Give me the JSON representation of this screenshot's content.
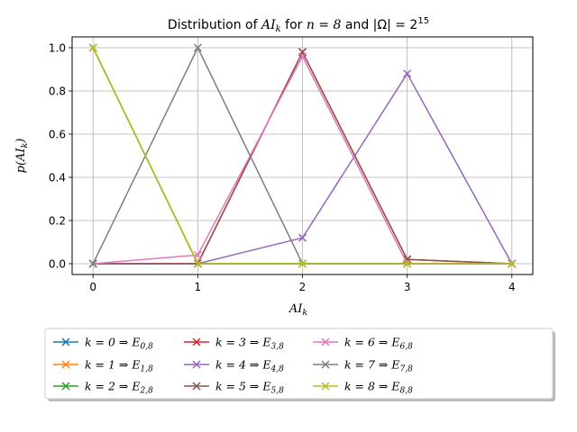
{
  "chart_data": {
    "type": "line",
    "title": "Distribution of AI_k for n = 8 and |Ω| = 2^15",
    "title_parts": {
      "prefix": "Distribution of ",
      "var": "AI",
      "var_sub": "k",
      "mid": " for ",
      "n_expr": "n = 8",
      "and": " and ",
      "omega_expr": "|Ω| = 2",
      "omega_sup": "15"
    },
    "xlabel": "AI_k",
    "xlabel_parts": {
      "main": "AI",
      "sub": "k"
    },
    "ylabel": "p(AI_k)",
    "ylabel_parts": {
      "pre": "p(AI",
      "sub": "k",
      "post": ")"
    },
    "x_ticks": [
      0,
      1,
      2,
      3,
      4
    ],
    "x_tick_labels": [
      "0",
      "1",
      "2",
      "3",
      "4"
    ],
    "y_ticks": [
      0.0,
      0.2,
      0.4,
      0.6,
      0.8,
      1.0
    ],
    "y_tick_labels": [
      "0.0",
      "0.2",
      "0.4",
      "0.6",
      "0.8",
      "1.0"
    ],
    "xlim": [
      -0.2,
      4.2
    ],
    "ylim": [
      -0.05,
      1.05
    ],
    "grid": true,
    "marker": "x",
    "legend_placement": "below-plot",
    "legend_columns": 4,
    "x": [
      0,
      1,
      2,
      3,
      4
    ],
    "series": [
      {
        "name": "k = 0 ⇒ E_{0,8}",
        "label": {
          "k": "k = 0 ⇒ ",
          "e": "E",
          "sub": "0,8"
        },
        "color": "#1f77b4",
        "values": [
          1.0,
          0.0,
          0.0,
          0.0,
          0.0
        ]
      },
      {
        "name": "k = 1 ⇒ E_{1,8}",
        "label": {
          "k": "k = 1 ⇒ ",
          "e": "E",
          "sub": "1,8"
        },
        "color": "#ff7f0e",
        "values": [
          1.0,
          0.0,
          0.0,
          0.0,
          0.0
        ]
      },
      {
        "name": "k = 2 ⇒ E_{2,8}",
        "label": {
          "k": "k = 2 ⇒ ",
          "e": "E",
          "sub": "2,8"
        },
        "color": "#2ca02c",
        "values": [
          1.0,
          0.0,
          0.0,
          0.0,
          0.0
        ]
      },
      {
        "name": "k = 3 ⇒ E_{3,8}",
        "label": {
          "k": "k = 3 ⇒ ",
          "e": "E",
          "sub": "3,8"
        },
        "color": "#d62728",
        "values": [
          0.0,
          0.0,
          0.98,
          0.02,
          0.0
        ]
      },
      {
        "name": "k = 4 ⇒ E_{4,8}",
        "label": {
          "k": "k = 4 ⇒ ",
          "e": "E",
          "sub": "4,8"
        },
        "color": "#9467bd",
        "values": [
          0.0,
          0.0,
          0.12,
          0.88,
          0.0
        ]
      },
      {
        "name": "k = 5 ⇒ E_{5,8}",
        "label": {
          "k": "k = 5 ⇒ ",
          "e": "E",
          "sub": "5,8"
        },
        "color": "#8c564b",
        "values": [
          0.0,
          0.0,
          0.98,
          0.02,
          0.0
        ]
      },
      {
        "name": "k = 6 ⇒ E_{6,8}",
        "label": {
          "k": "k = 6 ⇒ ",
          "e": "E",
          "sub": "6,8"
        },
        "color": "#e377c2",
        "values": [
          0.0,
          0.04,
          0.96,
          0.0,
          0.0
        ]
      },
      {
        "name": "k = 7 ⇒ E_{7,8}",
        "label": {
          "k": "k = 7 ⇒ ",
          "e": "E",
          "sub": "7,8"
        },
        "color": "#7f7f7f",
        "values": [
          0.0,
          1.0,
          0.0,
          0.0,
          0.0
        ]
      },
      {
        "name": "k = 8 ⇒ E_{8,8}",
        "label": {
          "k": "k = 8 ⇒ ",
          "e": "E",
          "sub": "8,8"
        },
        "color": "#bcbd22",
        "values": [
          1.0,
          0.0,
          0.0,
          0.0,
          0.0
        ]
      }
    ]
  }
}
